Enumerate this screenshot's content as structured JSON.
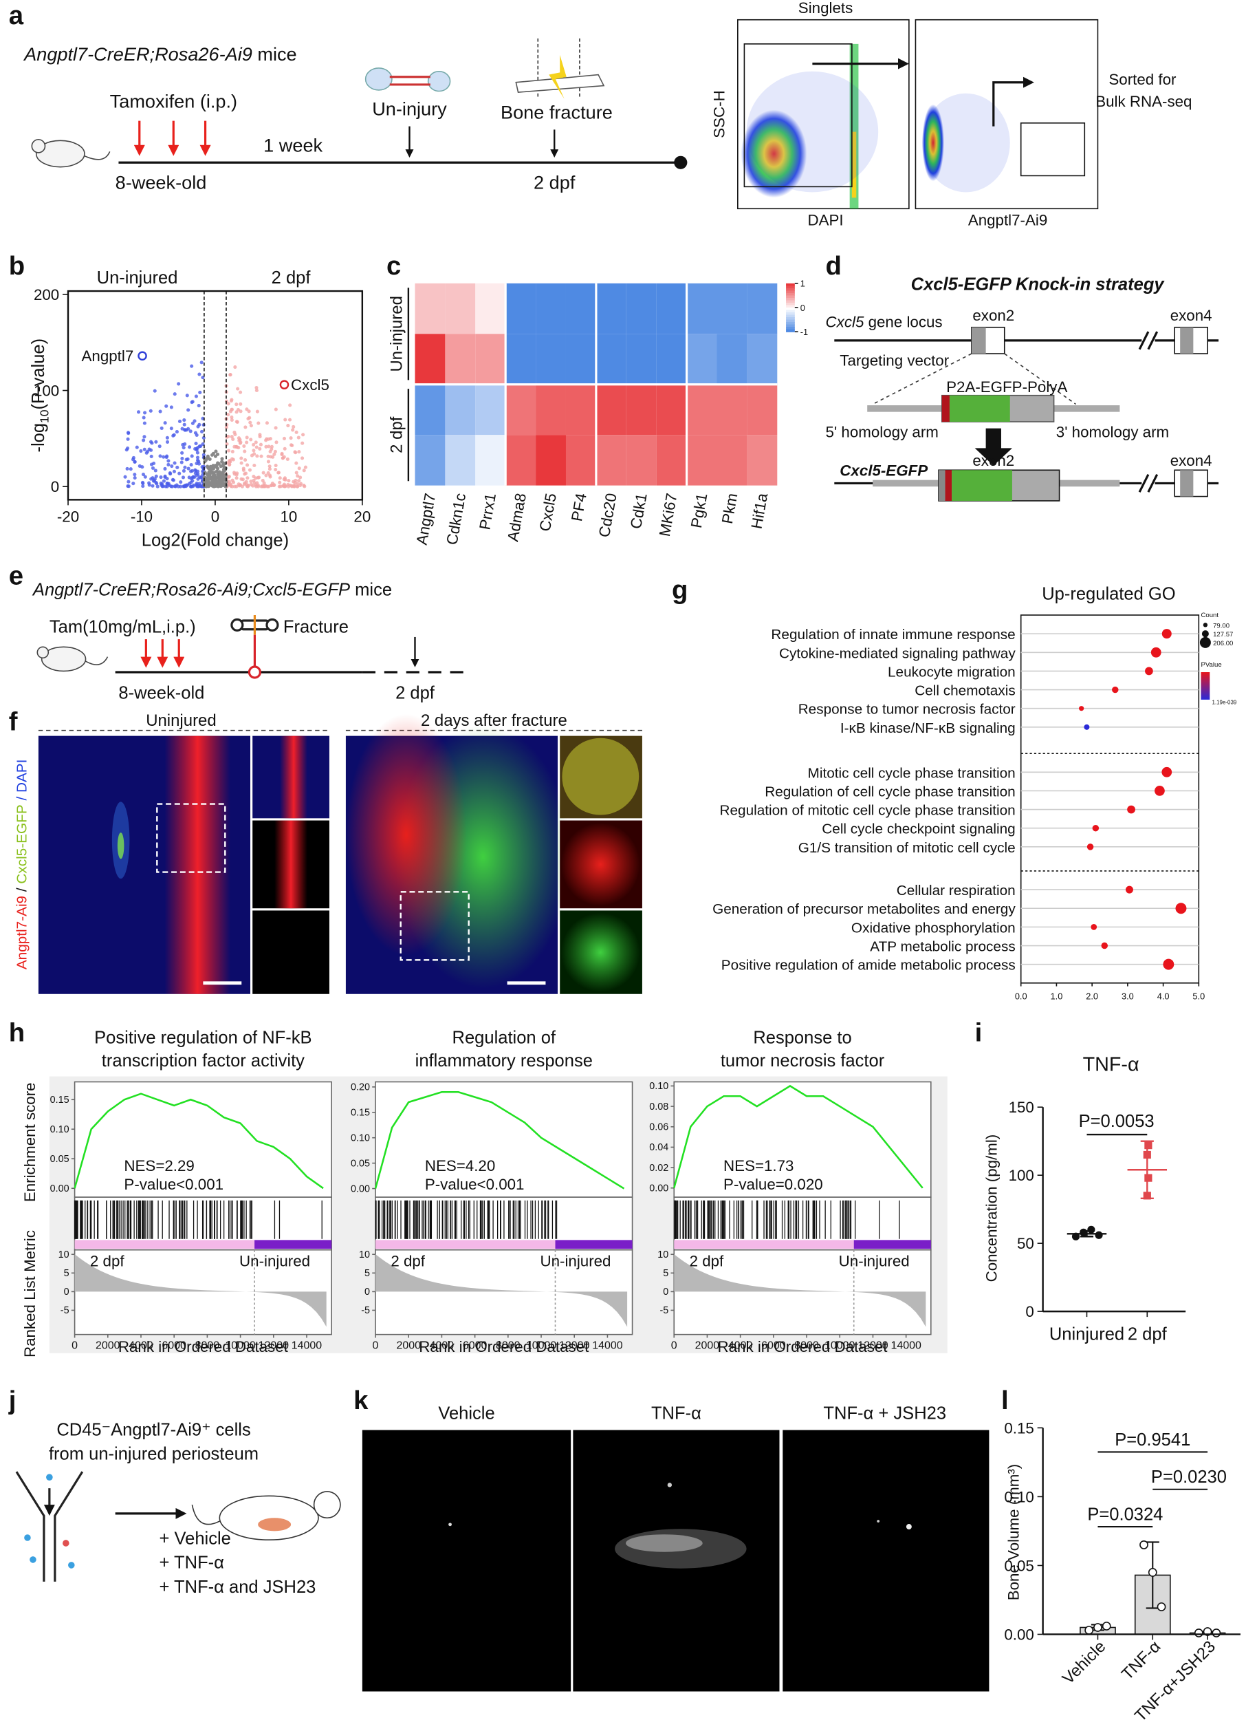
{
  "panel_labels": [
    "a",
    "b",
    "c",
    "d",
    "e",
    "f",
    "g",
    "h",
    "i",
    "j",
    "k",
    "l"
  ],
  "a": {
    "mice": "Angptl7-CreER;Rosa26-Ai9",
    "mice_suffix": " mice",
    "tamoxifen": "Tamoxifen (i.p.)",
    "interval": "1 week",
    "age": "8-week-old",
    "uninjury": "Un-injury",
    "fracture": "Bone fracture",
    "dpf": "2 dpf",
    "flow_title": "Singlets",
    "flow_y": "SSC-H",
    "flow_x1": "DAPI",
    "flow_x2": "Angptl7-Ai9",
    "sorted": [
      "Sorted for",
      "Bulk RNA-seq"
    ]
  },
  "b": {
    "type": "scatter",
    "left_label": "Un-injured",
    "right_label": "2 dpf",
    "xlabel": "Log2(Fold change)",
    "ylabel": [
      "-log",
      "10",
      "(P-value)"
    ],
    "xlim": [
      -20,
      20
    ],
    "ylim": [
      0,
      200
    ],
    "xticks": [
      -20,
      -10,
      0,
      10,
      20
    ],
    "yticks": [
      0,
      100,
      200
    ],
    "thresholds": [
      -1.5,
      1.5
    ],
    "highlights": [
      {
        "name": "Angptl7",
        "x": -9.9,
        "y": 136,
        "color": "#2f3fd8"
      },
      {
        "name": "Cxcl5",
        "x": 9.4,
        "y": 106,
        "color": "#d8232a"
      }
    ]
  },
  "c": {
    "type": "heatmap",
    "genes": [
      "Angptl7",
      "Cdkn1c",
      "Prrx1",
      "Adma8",
      "Cxcl5",
      "PF4",
      "Cdc20",
      "Cdk1",
      "MKi67",
      "Pgk1",
      "Pkm",
      "Hif1a"
    ],
    "groups": [
      "Un-injured",
      "2 dpf"
    ],
    "values": [
      [
        0.3,
        0.3,
        0.1,
        -0.9,
        -0.9,
        -0.9,
        -0.9,
        -0.9,
        -0.9,
        -0.8,
        -0.8,
        -0.8
      ],
      [
        1.0,
        0.5,
        0.5,
        -0.9,
        -0.9,
        -0.9,
        -0.9,
        -0.9,
        -0.9,
        -0.7,
        -0.8,
        -0.7
      ],
      [
        -0.8,
        -0.5,
        -0.4,
        0.7,
        0.8,
        0.8,
        0.9,
        0.9,
        0.9,
        0.7,
        0.7,
        0.7
      ],
      [
        -0.7,
        -0.3,
        -0.1,
        0.8,
        1.0,
        0.8,
        0.7,
        0.7,
        0.8,
        0.7,
        0.7,
        0.6
      ]
    ],
    "colorbar_ticks": [
      1,
      0,
      -1
    ],
    "colors": [
      "#3b7de0",
      "#ffffff",
      "#e8383c"
    ]
  },
  "d": {
    "title": [
      "Cxcl5",
      "-EGFP Knock-in strategy"
    ],
    "locus": [
      "Cxcl5",
      " gene locus"
    ],
    "exon2": "exon2",
    "exon4": "exon4",
    "vector": "Targeting vector",
    "cassette": "P2A-EGFP-PolyA",
    "arm5": "5' homology arm",
    "arm3": "3' homology arm",
    "allele": "Cxcl5-EGFP"
  },
  "e": {
    "mice": "Angptl7-CreER;Rosa26-Ai9;Cxcl5-EGFP",
    "mice_suffix": " mice",
    "tam": "Tam(10mg/mL,i.p.)",
    "fracture": "Fracture",
    "age": "8-week-old",
    "dpf": "2 dpf"
  },
  "f": {
    "uninjured": "Uninjured",
    "fracture": "2 days after fracture",
    "stain": [
      "Angptl7-Ai9",
      " / ",
      "Cxcl5-EGFP",
      " / DAPI"
    ]
  },
  "g": {
    "type": "dot",
    "title": "Up-regulated GO",
    "terms": [
      "Regulation of innate immune response",
      "Cytokine-mediated signaling pathway",
      "Leukocyte migration",
      "Cell chemotaxis",
      "Response to tumor necrosis factor",
      "I-κB kinase/NF-κB signaling",
      "Mitotic cell cycle phase transition",
      "Regulation of cell cycle phase transition",
      "Regulation of mitotic cell cycle phase transition",
      "Cell cycle checkpoint signaling",
      "G1/S transition of mitotic cell cycle",
      "Cellular respiration",
      "Generation of precursor metabolites and energy",
      "Oxidative phosphorylation",
      "ATP metabolic process",
      "Positive regulation of amide metabolic process"
    ],
    "values": [
      4.1,
      3.8,
      3.6,
      2.65,
      1.7,
      1.85,
      4.1,
      3.9,
      3.1,
      2.1,
      1.95,
      3.05,
      4.5,
      2.05,
      2.35,
      4.15
    ],
    "counts": [
      180,
      190,
      150,
      120,
      90,
      100,
      190,
      190,
      150,
      120,
      120,
      140,
      206,
      110,
      120,
      206
    ],
    "colors": [
      "#e8141c",
      "#e8141c",
      "#e8141c",
      "#e8141c",
      "#e8141c",
      "#2a2ad8",
      "#e8141c",
      "#e8141c",
      "#e8141c",
      "#e8141c",
      "#e8141c",
      "#e8141c",
      "#e8141c",
      "#e8141c",
      "#e8141c",
      "#e8141c"
    ],
    "xlim": [
      0,
      5
    ],
    "xticks": [
      {
        "value": 0,
        "label": "0.0"
      },
      {
        "value": 1,
        "label": "1.0"
      },
      {
        "value": 2,
        "label": "2.0"
      },
      {
        "value": 3,
        "label": "3.0"
      },
      {
        "value": 4,
        "label": "4.0"
      },
      {
        "value": 5,
        "label": "5.0"
      }
    ],
    "count_legend": {
      "title": "Count",
      "values": [
        {
          "value": 79,
          "label": "79.00"
        },
        {
          "value": 127.57,
          "label": "127.57"
        },
        {
          "value": 206,
          "label": "206.00"
        }
      ]
    },
    "pvalue_legend": {
      "title": "PValue",
      "label": "1.19e-039"
    }
  },
  "h": {
    "type": "line",
    "ylabel": "Enrichment score",
    "metric_label": "Ranked List Metric",
    "xlabel": "Rank in Ordered Dataset",
    "left_label": "2 dpf",
    "right_label": "Un-injured",
    "xlim": [
      0,
      15500
    ],
    "xticks": [
      0,
      2000,
      4000,
      6000,
      8000,
      10000,
      12000,
      14000
    ],
    "metric_ylim": [
      -11.5,
      11.2
    ],
    "metric_yticks": [
      10,
      5,
      0,
      -5
    ],
    "ranks": [
      0,
      1000,
      2000,
      3000,
      4000,
      5000,
      6000,
      7000,
      8000,
      9000,
      10000,
      11000,
      12000,
      13000,
      14000,
      15000
    ],
    "plots": [
      {
        "title": [
          "Positive regulation of NF-kB",
          "transcription factor activity"
        ],
        "nes": "NES=2.29",
        "pvalue": "P-value<0.001",
        "ylim": [
          -0.015,
          0.18
        ],
        "yticks": [
          {
            "value": 0,
            "label": "0.00"
          },
          {
            "value": 0.05,
            "label": "0.05"
          },
          {
            "value": 0.1,
            "label": "0.10"
          },
          {
            "value": 0.15,
            "label": "0.15"
          }
        ],
        "es": [
          0.0,
          0.1,
          0.13,
          0.15,
          0.16,
          0.15,
          0.14,
          0.15,
          0.14,
          0.12,
          0.11,
          0.08,
          0.07,
          0.05,
          0.02,
          0.0
        ]
      },
      {
        "title": [
          "Regulation of",
          "inflammatory response"
        ],
        "nes": "NES=4.20",
        "pvalue": "P-value<0.001",
        "ylim": [
          -0.017,
          0.21
        ],
        "yticks": [
          {
            "value": 0,
            "label": "0.00"
          },
          {
            "value": 0.05,
            "label": "0.05"
          },
          {
            "value": 0.1,
            "label": "0.10"
          },
          {
            "value": 0.15,
            "label": "0.15"
          },
          {
            "value": 0.2,
            "label": "0.20"
          }
        ],
        "es": [
          0.0,
          0.12,
          0.17,
          0.18,
          0.19,
          0.19,
          0.18,
          0.17,
          0.15,
          0.13,
          0.1,
          0.08,
          0.06,
          0.04,
          0.02,
          0.0
        ]
      },
      {
        "title": [
          "Response to",
          "tumor necrosis factor"
        ],
        "nes": "NES=1.73",
        "pvalue": "P-value=0.020",
        "ylim": [
          -0.009,
          0.104
        ],
        "yticks": [
          {
            "value": 0,
            "label": "0.00"
          },
          {
            "value": 0.02,
            "label": "0.02"
          },
          {
            "value": 0.04,
            "label": "0.04"
          },
          {
            "value": 0.06,
            "label": "0.06"
          },
          {
            "value": 0.08,
            "label": "0.08"
          },
          {
            "value": 0.1,
            "label": "0.10"
          }
        ],
        "es": [
          0.0,
          0.06,
          0.08,
          0.09,
          0.09,
          0.08,
          0.09,
          0.1,
          0.09,
          0.09,
          0.08,
          0.07,
          0.06,
          0.04,
          0.02,
          0.0
        ]
      }
    ]
  },
  "i": {
    "type": "dot",
    "title": "TNF-α",
    "ylabel": "Concentration (pg/ml)",
    "categories": [
      "Uninjured",
      "2 dpf"
    ],
    "ylim": [
      0,
      150
    ],
    "yticks": [
      0,
      50,
      100,
      150
    ],
    "points": [
      [
        55,
        58,
        60,
        56
      ],
      [
        122,
        115,
        98,
        85
      ]
    ],
    "means": [
      57,
      104
    ],
    "sds": [
      2,
      21
    ],
    "pvalue": "P=0.0053",
    "colors": [
      "#111111",
      "#e0474c"
    ]
  },
  "j": {
    "cells": [
      "CD45⁻Angptl7-Ai9⁺ cells",
      "from un-injured periosteum"
    ],
    "treatments": [
      "+ Vehicle",
      "+ TNF-α",
      "+ TNF-α and JSH23"
    ]
  },
  "k": {
    "titles": [
      "Vehicle",
      "TNF-α",
      "TNF-α + JSH23"
    ]
  },
  "l": {
    "type": "bar",
    "ylabel": "Bone Volume (mm³)",
    "categories": [
      "Vehicle",
      "TNF-α",
      "TNF-α+JSH23"
    ],
    "ylim": [
      0,
      0.15
    ],
    "yticks": [
      {
        "value": 0,
        "label": "0.00"
      },
      {
        "value": 0.05,
        "label": "0.05"
      },
      {
        "value": 0.1,
        "label": "0.10"
      },
      {
        "value": 0.15,
        "label": "0.15"
      }
    ],
    "means": [
      0.005,
      0.043,
      0.001
    ],
    "sds": [
      0.002,
      0.024,
      0.001
    ],
    "points": [
      [
        0.003,
        0.005,
        0.006
      ],
      [
        0.065,
        0.045,
        0.02
      ],
      [
        0.001,
        0.002,
        0.001
      ]
    ],
    "pvalues": [
      "P=0.9541",
      "P=0.0230",
      "P=0.0324"
    ],
    "color": "#d9d9d9"
  }
}
